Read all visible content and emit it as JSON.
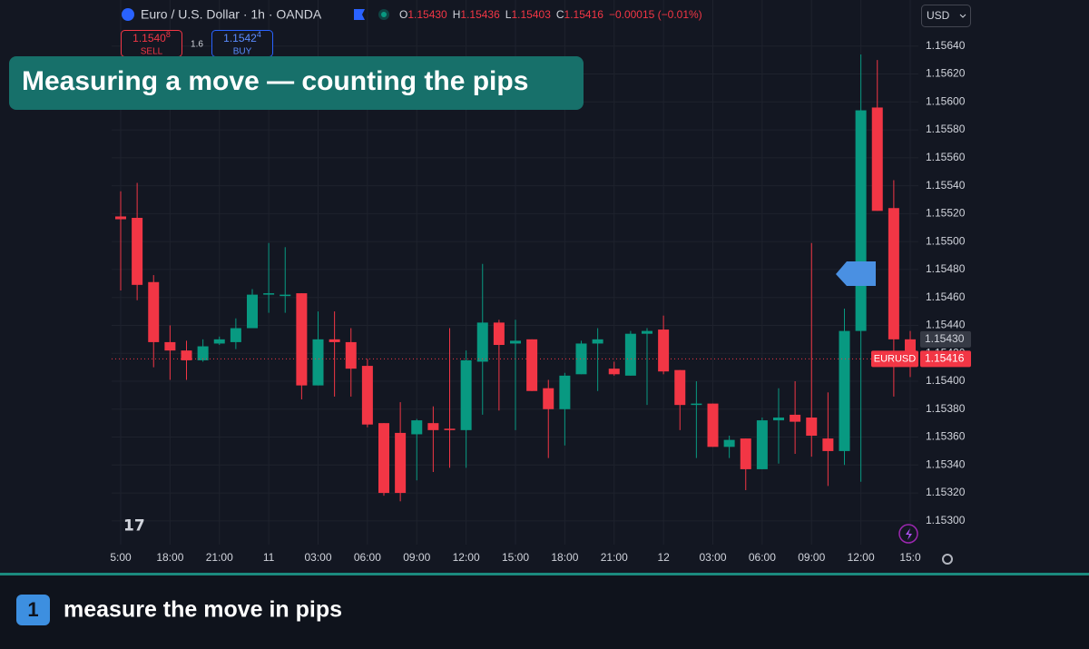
{
  "header": {
    "symbol": "Euro / U.S. Dollar · 1h · OANDA",
    "ohlc": [
      {
        "k": "O",
        "v": "1.15430"
      },
      {
        "k": "H",
        "v": "1.15436"
      },
      {
        "k": "L",
        "v": "1.15403"
      },
      {
        "k": "C",
        "v": "1.15416"
      }
    ],
    "change": "−0.00015 (−0.01%)",
    "sell": {
      "price": "1.1540",
      "pip": "8",
      "label": "SELL"
    },
    "spread": "1.6",
    "buy": {
      "price": "1.1542",
      "pip": "4",
      "label": "BUY"
    },
    "currency": "USD"
  },
  "overlay_title": "Measuring a move  —  counting the pips",
  "caption": {
    "number": "1",
    "text": "measure the move in pips"
  },
  "chart_data": {
    "type": "candlestick",
    "categories": [
      "5:00",
      null,
      null,
      "18:00",
      null,
      null,
      "21:00",
      null,
      null,
      "11",
      null,
      null,
      "03:00",
      null,
      null,
      "06:00",
      null,
      null,
      "09:00",
      null,
      null,
      "12:00",
      null,
      null,
      "15:00",
      null,
      null,
      "18:00",
      null,
      null,
      "21:00",
      null,
      null,
      "12",
      null,
      null,
      "03:00",
      null,
      null,
      "06:00",
      null,
      null,
      "09:00",
      null,
      null,
      "12:00",
      null,
      null,
      "15:0"
    ],
    "open": [
      1.15518,
      1.15517,
      1.15471,
      1.15428,
      1.15422,
      1.15415,
      1.15427,
      1.15428,
      1.15438,
      1.15462,
      1.15461,
      1.15463,
      1.15397,
      1.1543,
      1.15428,
      1.15411,
      1.1537,
      1.15363,
      1.15362,
      1.1537,
      1.15366,
      1.15365,
      1.15414,
      1.15442,
      1.15427,
      1.1543,
      1.15395,
      1.1538,
      1.15405,
      1.15427,
      1.15409,
      1.15404,
      1.15434,
      1.15437,
      1.15408,
      1.15383,
      1.15384,
      1.15353,
      1.15359,
      1.15337,
      1.15372,
      1.15376,
      1.15374,
      1.15359,
      1.1535,
      1.15436,
      1.15596,
      1.15524,
      1.1543
    ],
    "high": [
      1.15536,
      1.15542,
      1.15476,
      1.1544,
      1.15429,
      1.1543,
      1.15432,
      1.15445,
      1.15466,
      1.15499,
      1.15496,
      1.15463,
      1.1545,
      1.1545,
      1.15438,
      1.15416,
      1.1537,
      1.15385,
      1.15373,
      1.15382,
      1.15438,
      1.15422,
      1.15484,
      1.15444,
      1.15444,
      1.1543,
      1.15401,
      1.15406,
      1.15429,
      1.15438,
      1.15414,
      1.15436,
      1.15438,
      1.15447,
      1.15408,
      1.154,
      1.15384,
      1.15361,
      1.15359,
      1.15374,
      1.15395,
      1.154,
      1.15499,
      1.15392,
      1.15452,
      1.15634,
      1.1563,
      1.15544,
      1.15436
    ],
    "low": [
      1.15465,
      1.15458,
      1.1541,
      1.15401,
      1.15401,
      1.15414,
      1.15426,
      1.15423,
      1.15438,
      1.15449,
      1.15449,
      1.15387,
      1.15397,
      1.15389,
      1.15389,
      1.15367,
      1.15318,
      1.15314,
      1.15329,
      1.15335,
      1.15338,
      1.15338,
      1.15376,
      1.15379,
      1.15365,
      1.15393,
      1.15345,
      1.15354,
      1.15405,
      1.15393,
      1.15404,
      1.15404,
      1.15383,
      1.15405,
      1.15365,
      1.15345,
      1.15353,
      1.15345,
      1.15322,
      1.15337,
      1.15341,
      1.15348,
      1.15346,
      1.15325,
      1.1534,
      1.15328,
      1.15522,
      1.15389,
      1.15403
    ],
    "close": [
      1.15516,
      1.15469,
      1.15428,
      1.15422,
      1.15415,
      1.15425,
      1.1543,
      1.15438,
      1.15462,
      1.15463,
      1.15462,
      1.15397,
      1.1543,
      1.15428,
      1.15409,
      1.15369,
      1.1532,
      1.1532,
      1.15372,
      1.15365,
      1.15365,
      1.15415,
      1.15442,
      1.15426,
      1.15429,
      1.15393,
      1.1538,
      1.15404,
      1.15427,
      1.1543,
      1.15405,
      1.15434,
      1.15436,
      1.15407,
      1.15383,
      1.15384,
      1.15353,
      1.15358,
      1.15337,
      1.15372,
      1.15374,
      1.15371,
      1.15361,
      1.1535,
      1.15436,
      1.15594,
      1.15522,
      1.1543,
      1.15416
    ],
    "up_color": "#089981",
    "down_color": "#f23645",
    "ylim": [
      1.15283,
      1.15673
    ],
    "yticks": [
      {
        "value": 1.153,
        "label": "1.15300"
      },
      {
        "value": 1.1532,
        "label": "1.15320"
      },
      {
        "value": 1.1534,
        "label": "1.15340"
      },
      {
        "value": 1.1536,
        "label": "1.15360"
      },
      {
        "value": 1.1538,
        "label": "1.15380"
      },
      {
        "value": 1.154,
        "label": "1.15400"
      },
      {
        "value": 1.1542,
        "label": "1.15420"
      },
      {
        "value": 1.1544,
        "label": "1.15440"
      },
      {
        "value": 1.1546,
        "label": "1.15460"
      },
      {
        "value": 1.1548,
        "label": "1.15480"
      },
      {
        "value": 1.155,
        "label": "1.15500"
      },
      {
        "value": 1.1552,
        "label": "1.15520"
      },
      {
        "value": 1.1554,
        "label": "1.15540"
      },
      {
        "value": 1.1556,
        "label": "1.15560"
      },
      {
        "value": 1.1558,
        "label": "1.15580"
      },
      {
        "value": 1.156,
        "label": "1.15600"
      },
      {
        "value": 1.1562,
        "label": "1.15620"
      },
      {
        "value": 1.1564,
        "label": "1.15640"
      }
    ],
    "grid": true,
    "price_tag": {
      "value": 1.1543,
      "label": "1.15430",
      "color": "#363a45"
    },
    "last_price": {
      "value": 1.15416,
      "label": "1.15416",
      "symbol": "EURUSD",
      "color": "#f23645"
    }
  }
}
